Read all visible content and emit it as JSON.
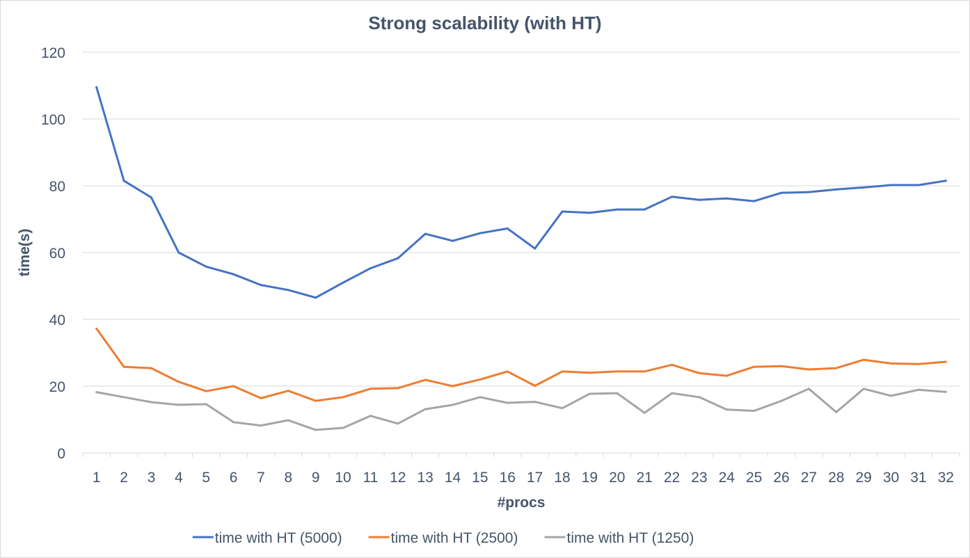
{
  "chart_data": {
    "type": "line",
    "title": "Strong scalability (with HT)",
    "xlabel": "#procs",
    "ylabel": "time(s)",
    "ylim": [
      0,
      120
    ],
    "yticks": [
      0,
      20,
      40,
      60,
      80,
      100,
      120
    ],
    "grid": true,
    "legend_position": "bottom",
    "x": [
      "1",
      "2",
      "3",
      "4",
      "5",
      "6",
      "7",
      "8",
      "9",
      "10",
      "11",
      "12",
      "13",
      "14",
      "15",
      "16",
      "17",
      "18",
      "19",
      "20",
      "21",
      "22",
      "23",
      "24",
      "25",
      "26",
      "27",
      "28",
      "29",
      "30",
      "31",
      "32"
    ],
    "series": [
      {
        "name": "time with HT (5000)",
        "color": "#4472c4",
        "values": [
          109.5,
          81.5,
          76.5,
          60,
          55.8,
          53.5,
          50.3,
          48.8,
          46.5,
          51,
          55.3,
          58.3,
          65.6,
          63.5,
          65.8,
          67.2,
          61.2,
          72.3,
          71.9,
          72.9,
          72.9,
          76.7,
          75.8,
          76.2,
          75.4,
          77.9,
          78.1,
          78.9,
          79.5,
          80.2,
          80.2,
          81.5
        ]
      },
      {
        "name": "time with HT (2500)",
        "color": "#ed7d31",
        "values": [
          37.2,
          25.8,
          25.4,
          21.3,
          18.5,
          20,
          16.4,
          18.6,
          15.6,
          16.7,
          19.2,
          19.4,
          21.9,
          20,
          22,
          24.4,
          20.1,
          24.4,
          24,
          24.4,
          24.4,
          26.4,
          23.9,
          23.1,
          25.8,
          26,
          25,
          25.4,
          27.9,
          26.8,
          26.6,
          27.3
        ]
      },
      {
        "name": "time with HT (1250)",
        "color": "#a5a5a5",
        "values": [
          18.2,
          16.7,
          15.2,
          14.4,
          14.6,
          9.2,
          8.2,
          9.8,
          6.9,
          7.5,
          11.1,
          8.8,
          13.1,
          14.4,
          16.7,
          15,
          15.3,
          13.4,
          17.7,
          17.9,
          12,
          17.9,
          16.7,
          13,
          12.6,
          15.6,
          19.2,
          12.2,
          19.2,
          17.1,
          18.9,
          18.3
        ]
      }
    ]
  }
}
